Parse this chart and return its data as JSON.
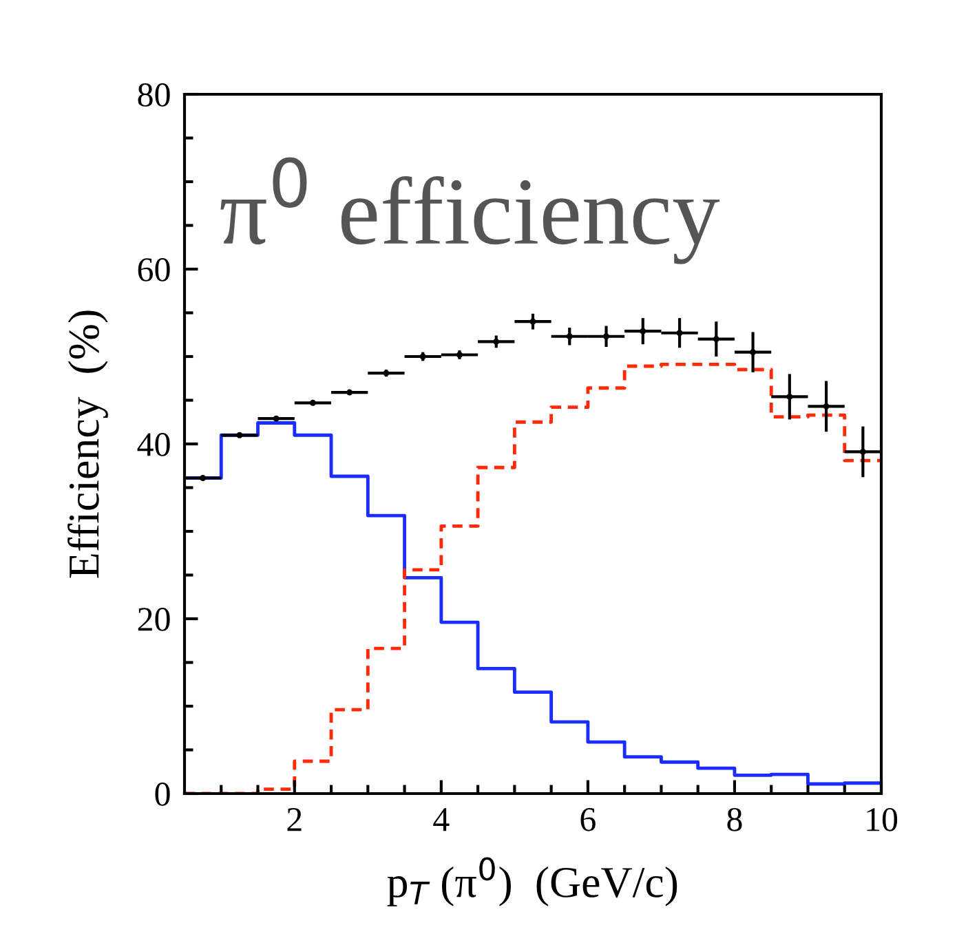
{
  "chart_data": {
    "type": "histogram",
    "xlabel": "p$_{T}$ (π$^{0}$)  (GeV/c)",
    "ylabel": "Efficiency  (%)",
    "annotations": [
      "π$^{0}$ efficiency"
    ],
    "x": [
      0.75,
      1.25,
      1.75,
      2.25,
      2.75,
      3.25,
      3.75,
      4.25,
      4.75,
      5.25,
      5.75,
      6.25,
      6.75,
      7.25,
      7.75,
      8.25,
      8.75,
      9.25,
      9.75
    ],
    "bins": [
      0.5,
      1.0,
      1.5,
      2.0,
      2.5,
      3.0,
      3.5,
      4.0,
      4.5,
      5.0,
      5.5,
      6.0,
      6.5,
      7.0,
      7.5,
      8.0,
      8.5,
      9.0,
      9.5,
      10.0
    ],
    "series": [
      {
        "type": "scatter",
        "color": "#000000",
        "marker": "circle",
        "values": [
          36.1,
          41.0,
          42.9,
          44.7,
          45.9,
          48.1,
          50.0,
          50.2,
          51.7,
          54.0,
          52.3,
          52.3,
          52.9,
          52.7,
          52.0,
          50.5,
          45.4,
          44.3,
          39.1
        ],
        "errors": [
          0.2,
          0.2,
          0.3,
          0.3,
          0.3,
          0.4,
          0.5,
          0.5,
          0.7,
          0.9,
          1.0,
          1.2,
          1.5,
          1.7,
          2.0,
          2.3,
          2.6,
          2.9,
          2.9
        ],
        "xerrors": [
          0.25,
          0.25,
          0.25,
          0.25,
          0.25,
          0.25,
          0.25,
          0.25,
          0.25,
          0.25,
          0.25,
          0.25,
          0.25,
          0.25,
          0.25,
          0.25,
          0.25,
          0.25,
          0.25
        ]
      },
      {
        "color": "#1a2cff",
        "line_style": "solid",
        "values": [
          36.1,
          41.0,
          42.4,
          41.0,
          36.3,
          31.8,
          24.7,
          19.6,
          14.3,
          11.6,
          8.2,
          5.9,
          4.2,
          3.6,
          2.9,
          2.1,
          2.2,
          1.1,
          1.2
        ]
      },
      {
        "color": "#ff2a0a",
        "line_style": "dashed",
        "values": [
          0,
          0,
          0.5,
          3.7,
          9.6,
          16.6,
          25.6,
          30.6,
          37.3,
          42.5,
          44.2,
          46.4,
          48.9,
          49.1,
          49.1,
          48.5,
          43.1,
          43.3,
          38.1
        ]
      }
    ],
    "xlim": [
      0.5,
      10
    ],
    "ylim": [
      0,
      80
    ],
    "xticks": [
      {
        "value": 1,
        "label": null
      },
      {
        "value": 1.5,
        "label": null
      },
      2,
      {
        "value": 2.5,
        "label": null
      },
      {
        "value": 3,
        "label": null
      },
      {
        "value": 3.5,
        "label": null
      },
      4,
      {
        "value": 4.5,
        "label": null
      },
      {
        "value": 5,
        "label": null
      },
      {
        "value": 5.5,
        "label": null
      },
      6,
      {
        "value": 6.5,
        "label": null
      },
      {
        "value": 7,
        "label": null
      },
      {
        "value": 7.5,
        "label": null
      },
      8,
      {
        "value": 8.5,
        "label": null
      },
      {
        "value": 9,
        "label": null
      },
      {
        "value": 9.5,
        "label": null
      },
      10
    ],
    "yticks": [
      0,
      {
        "value": 5,
        "label": null
      },
      {
        "value": 10,
        "label": null
      },
      {
        "value": 15,
        "label": null
      },
      20,
      {
        "value": 25,
        "label": null
      },
      {
        "value": 30,
        "label": null
      },
      {
        "value": 35,
        "label": null
      },
      40,
      {
        "value": 45,
        "label": null
      },
      {
        "value": 50,
        "label": null
      },
      {
        "value": 55,
        "label": null
      },
      60,
      {
        "value": 65,
        "label": null
      },
      {
        "value": 70,
        "label": null
      },
      {
        "value": 75,
        "label": null
      },
      80
    ],
    "grid": false,
    "legend": false
  }
}
